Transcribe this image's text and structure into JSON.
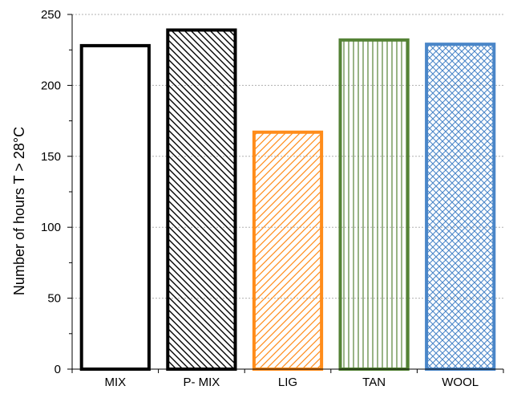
{
  "chart_data": {
    "type": "bar",
    "title": "",
    "xlabel": "",
    "ylabel": "Number of hours T > 28°C",
    "ylim": [
      0,
      250
    ],
    "y_ticks": [
      "0",
      "50",
      "100",
      "150",
      "200",
      "250"
    ],
    "y_tick_values": [
      0,
      50,
      100,
      150,
      200,
      250
    ],
    "grid": "horizontal-dotted-gridlines",
    "categories": [
      "MIX",
      "P- MIX",
      "LIG",
      "TAN",
      "WOOL"
    ],
    "values": [
      228,
      239,
      167,
      232,
      229
    ],
    "bar_styles": [
      {
        "color": "#000000",
        "pattern": "none"
      },
      {
        "color": "#000000",
        "pattern": "diagonal-down"
      },
      {
        "color": "#ff8c1a",
        "pattern": "diagonal-up"
      },
      {
        "color": "#548235",
        "pattern": "vertical"
      },
      {
        "color": "#4a86c8",
        "pattern": "crosshatch"
      }
    ]
  }
}
